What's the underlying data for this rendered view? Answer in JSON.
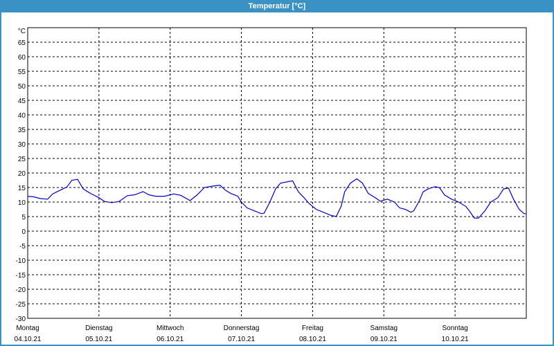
{
  "window": {
    "title": "Temperatur [°C]"
  },
  "chart_data": {
    "type": "line",
    "title": "Temperatur [°C]",
    "ylabel": "°C",
    "ylim": [
      -30,
      70
    ],
    "yticks": [
      65,
      60,
      55,
      50,
      45,
      40,
      35,
      30,
      25,
      20,
      15,
      10,
      5,
      0,
      -5,
      -10,
      -15,
      -20,
      -25,
      -30
    ],
    "grid": true,
    "xlim_days": [
      0,
      7
    ],
    "x_ticks": [
      {
        "day": "Montag",
        "date": "04.10.21"
      },
      {
        "day": "Dienstag",
        "date": "05.10.21"
      },
      {
        "day": "Mittwoch",
        "date": "06.10.21"
      },
      {
        "day": "Donnerstag",
        "date": "07.10.21"
      },
      {
        "day": "Freitag",
        "date": "08.10.21"
      },
      {
        "day": "Samstag",
        "date": "09.10.21"
      },
      {
        "day": "Sonntag",
        "date": "10.10.21"
      }
    ],
    "series": [
      {
        "color": "#0000cc",
        "points": [
          [
            0.0,
            12.0
          ],
          [
            0.08,
            11.8
          ],
          [
            0.18,
            11.2
          ],
          [
            0.28,
            11.0
          ],
          [
            0.35,
            12.8
          ],
          [
            0.45,
            14.0
          ],
          [
            0.55,
            15.2
          ],
          [
            0.62,
            17.5
          ],
          [
            0.7,
            17.8
          ],
          [
            0.78,
            14.5
          ],
          [
            0.88,
            13.0
          ],
          [
            1.0,
            11.5
          ],
          [
            1.08,
            10.2
          ],
          [
            1.18,
            9.8
          ],
          [
            1.28,
            10.2
          ],
          [
            1.4,
            12.2
          ],
          [
            1.5,
            12.5
          ],
          [
            1.62,
            13.6
          ],
          [
            1.7,
            12.5
          ],
          [
            1.8,
            12.0
          ],
          [
            1.92,
            12.0
          ],
          [
            2.05,
            12.8
          ],
          [
            2.15,
            12.3
          ],
          [
            2.28,
            10.5
          ],
          [
            2.38,
            12.5
          ],
          [
            2.48,
            15.0
          ],
          [
            2.6,
            15.5
          ],
          [
            2.7,
            15.8
          ],
          [
            2.78,
            14.0
          ],
          [
            2.85,
            13.0
          ],
          [
            2.95,
            12.0
          ],
          [
            3.0,
            10.0
          ],
          [
            3.08,
            8.0
          ],
          [
            3.18,
            7.0
          ],
          [
            3.28,
            6.0
          ],
          [
            3.32,
            6.2
          ],
          [
            3.4,
            10.0
          ],
          [
            3.48,
            14.5
          ],
          [
            3.55,
            16.5
          ],
          [
            3.65,
            17.0
          ],
          [
            3.72,
            17.3
          ],
          [
            3.8,
            13.5
          ],
          [
            3.88,
            11.5
          ],
          [
            3.95,
            9.5
          ],
          [
            4.05,
            7.5
          ],
          [
            4.15,
            6.5
          ],
          [
            4.25,
            5.5
          ],
          [
            4.33,
            5.0
          ],
          [
            4.4,
            8.5
          ],
          [
            4.45,
            13.5
          ],
          [
            4.53,
            16.5
          ],
          [
            4.62,
            18.0
          ],
          [
            4.7,
            16.5
          ],
          [
            4.78,
            13.0
          ],
          [
            4.88,
            11.5
          ],
          [
            4.95,
            10.3
          ],
          [
            5.05,
            11.0
          ],
          [
            5.15,
            10.0
          ],
          [
            5.22,
            8.0
          ],
          [
            5.3,
            7.5
          ],
          [
            5.38,
            6.5
          ],
          [
            5.42,
            7.0
          ],
          [
            5.5,
            10.5
          ],
          [
            5.55,
            13.5
          ],
          [
            5.62,
            14.5
          ],
          [
            5.72,
            15.3
          ],
          [
            5.78,
            15.0
          ],
          [
            5.85,
            12.5
          ],
          [
            5.95,
            11.0
          ],
          [
            6.05,
            10.0
          ],
          [
            6.15,
            8.5
          ],
          [
            6.2,
            7.0
          ],
          [
            6.27,
            4.5
          ],
          [
            6.33,
            4.5
          ],
          [
            6.42,
            7.0
          ],
          [
            6.5,
            10.0
          ],
          [
            6.6,
            11.5
          ],
          [
            6.68,
            14.5
          ],
          [
            6.75,
            14.8
          ],
          [
            6.82,
            11.0
          ],
          [
            6.9,
            7.5
          ],
          [
            6.97,
            6.0
          ],
          [
            7.0,
            6.0
          ]
        ]
      }
    ]
  }
}
